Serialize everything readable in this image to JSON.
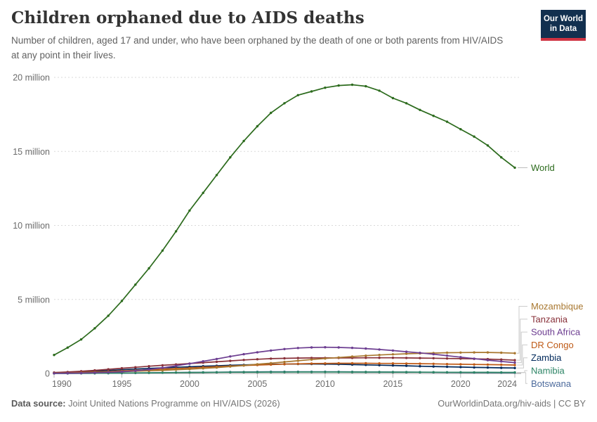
{
  "header": {
    "title": "Children orphaned due to AIDS deaths",
    "subtitle": "Number of children, aged 17 and under, who have been orphaned by the death of one or both parents from HIV/AIDS at any point in their lives."
  },
  "logo": {
    "line1": "Our World",
    "line2": "in Data",
    "bg_color": "#12304f",
    "stripe_color": "#cf3342"
  },
  "chart_data": {
    "type": "line",
    "title": "Children orphaned due to AIDS deaths",
    "xlabel": "",
    "ylabel": "",
    "xlim": [
      1990,
      2024
    ],
    "ylim": [
      0,
      20000000
    ],
    "grid": "horizontal-dashed",
    "legend_position": "right-end-labels",
    "unit": "million",
    "x": [
      1990,
      1991,
      1992,
      1993,
      1994,
      1995,
      1996,
      1997,
      1998,
      1999,
      2000,
      2001,
      2002,
      2003,
      2004,
      2005,
      2006,
      2007,
      2008,
      2009,
      2010,
      2011,
      2012,
      2013,
      2014,
      2015,
      2016,
      2017,
      2018,
      2019,
      2020,
      2021,
      2022,
      2023,
      2024
    ],
    "xticks": {
      "values": [
        1990,
        1995,
        2000,
        2005,
        2010,
        2015,
        2020,
        2024
      ],
      "labels": [
        "1990",
        "1995",
        "2000",
        "2005",
        "2010",
        "2015",
        "2020",
        "2024"
      ]
    },
    "yticks": {
      "values": [
        0,
        5,
        10,
        15,
        20
      ],
      "labels": [
        "0",
        "5 million",
        "10 million",
        "15 million",
        "20 million"
      ]
    },
    "legend_order": [
      "Mozambique",
      "Tanzania",
      "South Africa",
      "DR Congo",
      "Zambia",
      "Namibia",
      "Botswana"
    ],
    "series": [
      {
        "name": "Botswana",
        "color": "#4C6A9C",
        "values": [
          0.003,
          0.005,
          0.008,
          0.013,
          0.019,
          0.026,
          0.034,
          0.043,
          0.052,
          0.061,
          0.07,
          0.079,
          0.087,
          0.095,
          0.102,
          0.108,
          0.112,
          0.115,
          0.116,
          0.116,
          0.115,
          0.113,
          0.11,
          0.106,
          0.102,
          0.097,
          0.092,
          0.087,
          0.081,
          0.075,
          0.07,
          0.064,
          0.059,
          0.054,
          0.05
        ]
      },
      {
        "name": "Namibia",
        "color": "#2C8465",
        "values": [
          0.004,
          0.007,
          0.011,
          0.016,
          0.022,
          0.029,
          0.037,
          0.045,
          0.053,
          0.06,
          0.067,
          0.073,
          0.079,
          0.084,
          0.088,
          0.092,
          0.095,
          0.097,
          0.098,
          0.099,
          0.099,
          0.098,
          0.097,
          0.095,
          0.093,
          0.091,
          0.089,
          0.087,
          0.084,
          0.082,
          0.079,
          0.077,
          0.075,
          0.072,
          0.07
        ]
      },
      {
        "name": "Zambia",
        "color": "#00295B",
        "values": [
          0.05,
          0.08,
          0.12,
          0.16,
          0.2,
          0.25,
          0.3,
          0.34,
          0.38,
          0.42,
          0.45,
          0.49,
          0.52,
          0.55,
          0.58,
          0.6,
          0.62,
          0.63,
          0.64,
          0.64,
          0.63,
          0.62,
          0.6,
          0.58,
          0.56,
          0.54,
          0.52,
          0.49,
          0.47,
          0.45,
          0.43,
          0.41,
          0.4,
          0.38,
          0.37
        ]
      },
      {
        "name": "DR Congo",
        "color": "#BE5915",
        "values": [
          0.03,
          0.05,
          0.07,
          0.1,
          0.13,
          0.17,
          0.21,
          0.25,
          0.29,
          0.33,
          0.37,
          0.42,
          0.46,
          0.5,
          0.54,
          0.57,
          0.6,
          0.63,
          0.65,
          0.67,
          0.68,
          0.69,
          0.69,
          0.69,
          0.68,
          0.68,
          0.67,
          0.66,
          0.65,
          0.63,
          0.62,
          0.61,
          0.6,
          0.59,
          0.57
        ]
      },
      {
        "name": "Tanzania",
        "color": "#883039",
        "values": [
          0.06,
          0.1,
          0.15,
          0.21,
          0.28,
          0.35,
          0.42,
          0.49,
          0.55,
          0.61,
          0.67,
          0.73,
          0.79,
          0.85,
          0.91,
          0.96,
          1.0,
          1.02,
          1.04,
          1.05,
          1.05,
          1.05,
          1.05,
          1.06,
          1.06,
          1.06,
          1.05,
          1.04,
          1.03,
          1.01,
          1.0,
          0.99,
          0.97,
          0.94,
          0.9
        ]
      },
      {
        "name": "Mozambique",
        "color": "#A8772F",
        "values": [
          0.02,
          0.03,
          0.05,
          0.07,
          0.09,
          0.12,
          0.15,
          0.18,
          0.21,
          0.25,
          0.29,
          0.34,
          0.4,
          0.47,
          0.54,
          0.62,
          0.7,
          0.78,
          0.86,
          0.94,
          1.01,
          1.08,
          1.14,
          1.2,
          1.25,
          1.29,
          1.33,
          1.36,
          1.38,
          1.4,
          1.41,
          1.42,
          1.42,
          1.4,
          1.37
        ]
      },
      {
        "name": "South Africa",
        "color": "#6D3E91",
        "values": [
          0.01,
          0.02,
          0.03,
          0.05,
          0.08,
          0.12,
          0.18,
          0.27,
          0.38,
          0.52,
          0.66,
          0.82,
          0.98,
          1.15,
          1.3,
          1.43,
          1.55,
          1.65,
          1.72,
          1.76,
          1.77,
          1.76,
          1.73,
          1.68,
          1.62,
          1.55,
          1.47,
          1.39,
          1.3,
          1.2,
          1.1,
          1.0,
          0.9,
          0.81,
          0.73
        ]
      },
      {
        "name": "World",
        "color": "#2C6B1D",
        "values": [
          1.25,
          1.75,
          2.3,
          3.05,
          3.9,
          4.9,
          6.0,
          7.1,
          8.3,
          9.6,
          11.0,
          12.2,
          13.4,
          14.6,
          15.7,
          16.7,
          17.6,
          18.25,
          18.8,
          19.05,
          19.3,
          19.45,
          19.5,
          19.4,
          19.1,
          18.6,
          18.25,
          17.8,
          17.4,
          17.0,
          16.5,
          16.0,
          15.4,
          14.6,
          13.9
        ]
      }
    ]
  },
  "footer": {
    "source_label": "Data source:",
    "source_text": " Joint United Nations Programme on HIV/AIDS (2026)",
    "right_text": "OurWorldinData.org/hiv-aids | CC BY"
  }
}
